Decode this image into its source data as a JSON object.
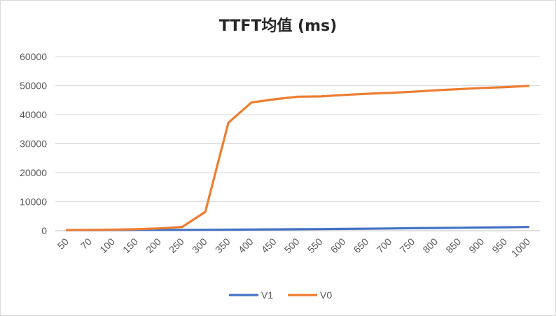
{
  "chart_data": {
    "type": "line",
    "title": "TTFT均值 (ms)",
    "xlabel": "",
    "ylabel": "",
    "categories": [
      "50",
      "70",
      "100",
      "150",
      "200",
      "250",
      "300",
      "350",
      "400",
      "450",
      "500",
      "550",
      "600",
      "650",
      "700",
      "750",
      "800",
      "850",
      "900",
      "950",
      "1000"
    ],
    "ylim": [
      0,
      60000
    ],
    "yticks": [
      0,
      10000,
      20000,
      30000,
      40000,
      50000,
      60000
    ],
    "grid": true,
    "legend": "bottom",
    "series": [
      {
        "name": "V1",
        "color": "#4472C4",
        "values": [
          200,
          220,
          240,
          260,
          280,
          300,
          320,
          350,
          400,
          450,
          500,
          550,
          620,
          700,
          780,
          860,
          940,
          1020,
          1100,
          1180,
          1280
        ]
      },
      {
        "name": "V0",
        "color": "#ED7D31",
        "values": [
          250,
          300,
          350,
          500,
          800,
          1300,
          6500,
          37200,
          44200,
          45300,
          46200,
          46300,
          46800,
          47200,
          47500,
          47900,
          48400,
          48800,
          49200,
          49500,
          49900
        ]
      }
    ]
  }
}
